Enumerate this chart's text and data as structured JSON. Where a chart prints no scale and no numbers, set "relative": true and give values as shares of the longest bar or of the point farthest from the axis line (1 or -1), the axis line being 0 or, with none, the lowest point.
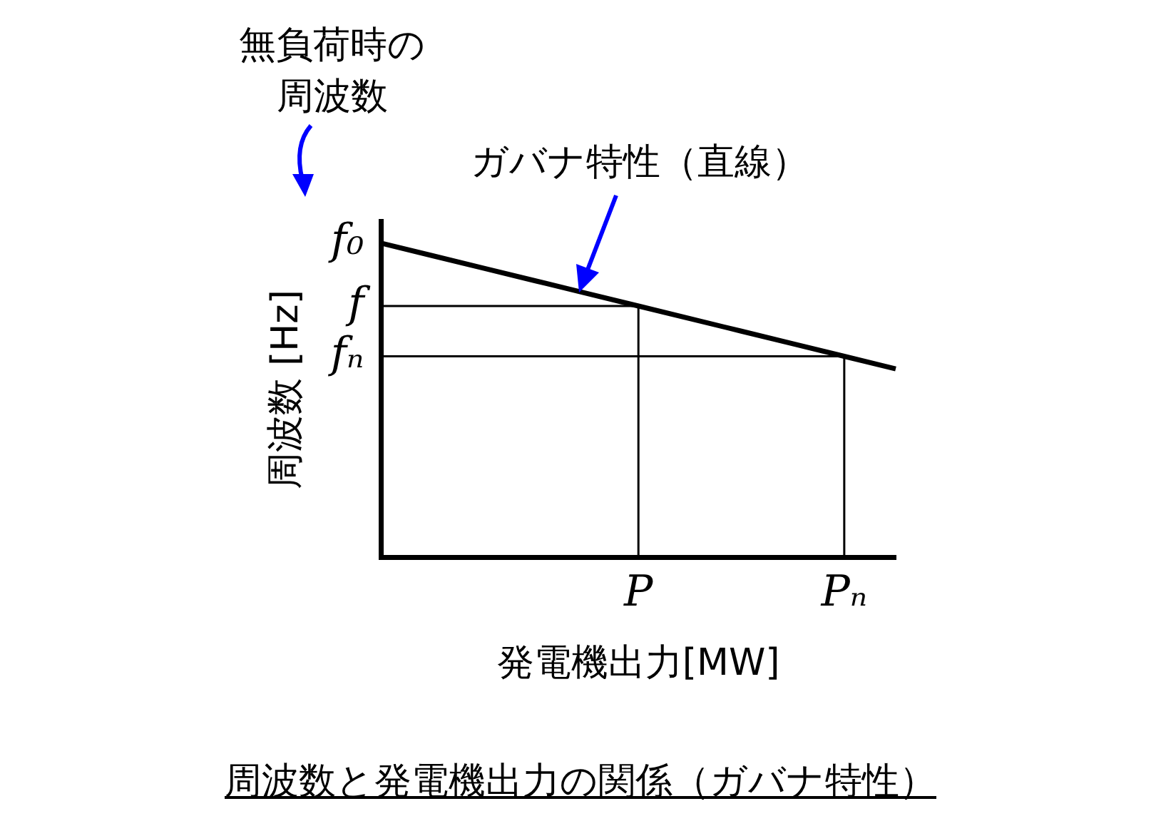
{
  "chart_data": {
    "type": "line",
    "title": "周波数と発電機出力の関係（ガバナ特性）",
    "xlabel": "発電機出力[MW]",
    "ylabel": "周波数 [Hz]",
    "relative": true,
    "categories": [
      null,
      null,
      null,
      null,
      null,
      "P",
      null,
      null,
      null,
      "Pₙ",
      null
    ],
    "grid": false,
    "legend": false,
    "marker": "none",
    "line_style": "solid",
    "series": [
      {
        "name": "f₀",
        "color": "#000000",
        "values": [
          1,
          0.96,
          0.92,
          0.88,
          0.84,
          0.8,
          0.76,
          0.72,
          0.68,
          0.64,
          0.6
        ]
      },
      {
        "name": "f",
        "color": "#000000",
        "values": [
          0.8,
          0.8,
          0.8,
          0.8,
          0.8,
          0.8,
          null,
          null,
          null,
          null,
          null
        ]
      },
      {
        "name": "fₙ",
        "color": "#000000",
        "values": [
          0.64,
          0.64,
          0.64,
          0.64,
          0.64,
          0.64,
          0.64,
          0.64,
          0.64,
          0.64,
          null
        ]
      }
    ],
    "annotations": [
      "無負荷時の周波数",
      "ガバナ特性（直線）"
    ]
  }
}
